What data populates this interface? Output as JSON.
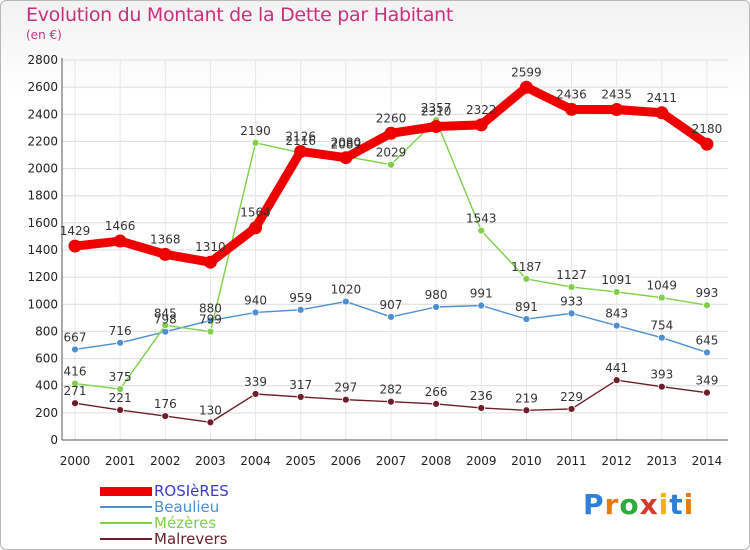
{
  "header": {
    "title": "Evolution du Montant de la Dette par Habitant",
    "subtitle": "(en €)"
  },
  "logo": {
    "text": "Proxiti",
    "letters": [
      "P",
      "r",
      "o",
      "x",
      "i",
      "t",
      "i"
    ],
    "colors": [
      "#2f7fd8",
      "#e87a14",
      "#2faa3a",
      "#d83a2a",
      "#f0b400",
      "#2f7fd8",
      "#e87a14"
    ]
  },
  "chart_data": {
    "type": "line",
    "title": "Evolution du Montant de la Dette par Habitant",
    "subtitle": "(en €)",
    "xlabel": "",
    "ylabel": "",
    "x": [
      "2000",
      "2001",
      "2002",
      "2003",
      "2004",
      "2005",
      "2006",
      "2007",
      "2008",
      "2009",
      "2010",
      "2011",
      "2012",
      "2013",
      "2014"
    ],
    "ylim": [
      0,
      2800
    ],
    "yticks": [
      0,
      200,
      400,
      600,
      800,
      1000,
      1200,
      1400,
      1600,
      1800,
      2000,
      2200,
      2400,
      2600,
      2800
    ],
    "grid": true,
    "legend_position": "bottom-left",
    "series": [
      {
        "name": "ROSIèRES",
        "color": "#ee0000",
        "emphasis": true,
        "values": [
          1429,
          1466,
          1368,
          1310,
          1564,
          2126,
          2080,
          2260,
          2310,
          2322,
          2599,
          2436,
          2435,
          2411,
          2180
        ]
      },
      {
        "name": "Beaulieu",
        "color": "#4d8fd0",
        "emphasis": false,
        "values": [
          667,
          716,
          798,
          880,
          940,
          959,
          1020,
          907,
          980,
          991,
          891,
          933,
          843,
          754,
          645
        ]
      },
      {
        "name": "Mézères",
        "color": "#7ed04a",
        "emphasis": false,
        "values": [
          416,
          375,
          845,
          799,
          2190,
          2116,
          2089,
          2029,
          2357,
          1543,
          1187,
          1127,
          1091,
          1049,
          993
        ]
      },
      {
        "name": "Malrevers",
        "color": "#6e1e28",
        "emphasis": false,
        "values": [
          271,
          221,
          176,
          130,
          339,
          317,
          297,
          282,
          266,
          236,
          219,
          229,
          441,
          393,
          349
        ]
      }
    ]
  }
}
